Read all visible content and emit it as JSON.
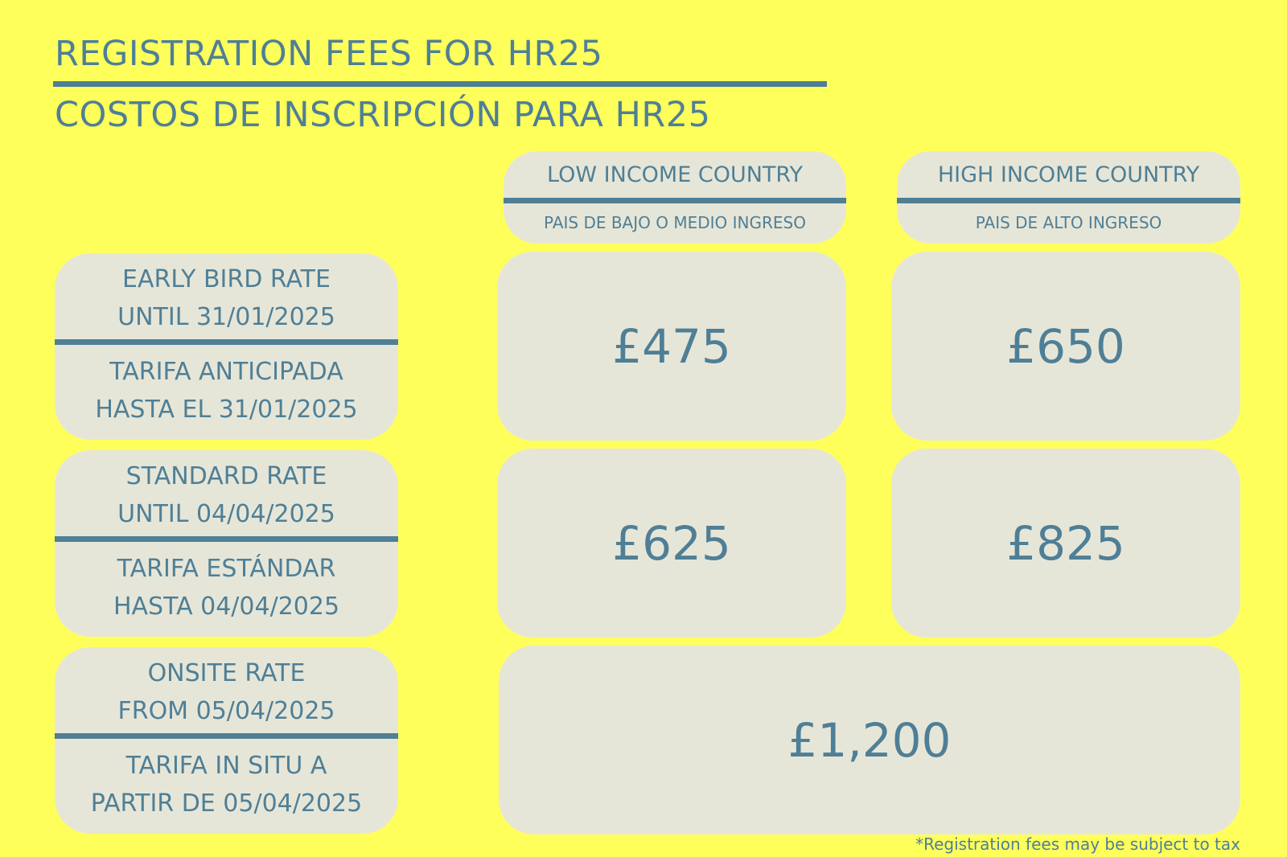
{
  "title": {
    "english": "REGISTRATION FEES FOR HR25",
    "spanish": "COSTOS DE INSCRIPCIÓN PARA HR25"
  },
  "columns": [
    {
      "english": "LOW INCOME COUNTRY",
      "spanish": "PAIS DE BAJO O MEDIO INGRESO"
    },
    {
      "english": "HIGH INCOME COUNTRY",
      "spanish": "PAIS DE ALTO INGRESO"
    }
  ],
  "rows": [
    {
      "english_line1": "EARLY BIRD RATE",
      "english_line2": "UNTIL 31/01/2025",
      "spanish_line1": "TARIFA ANTICIPADA",
      "spanish_line2": "HASTA EL 31/01/2025",
      "low_income_price": "£475",
      "high_income_price": "£650"
    },
    {
      "english_line1": "STANDARD RATE",
      "english_line2": "UNTIL 04/04/2025",
      "spanish_line1": "TARIFA ESTÁNDAR",
      "spanish_line2": "HASTA  04/04/2025",
      "low_income_price": "£625",
      "high_income_price": "£825"
    },
    {
      "english_line1": "ONSITE RATE",
      "english_line2": "FROM 05/04/2025",
      "spanish_line1": "TARIFA IN SITU A",
      "spanish_line2": "PARTIR DE 05/04/2025",
      "all_price": "£1,200"
    }
  ],
  "footnote": "*Registration fees may be subject to tax",
  "colors": {
    "background": "#ffff5c",
    "card": "#e6e6d8",
    "text": "#4f7f96"
  }
}
